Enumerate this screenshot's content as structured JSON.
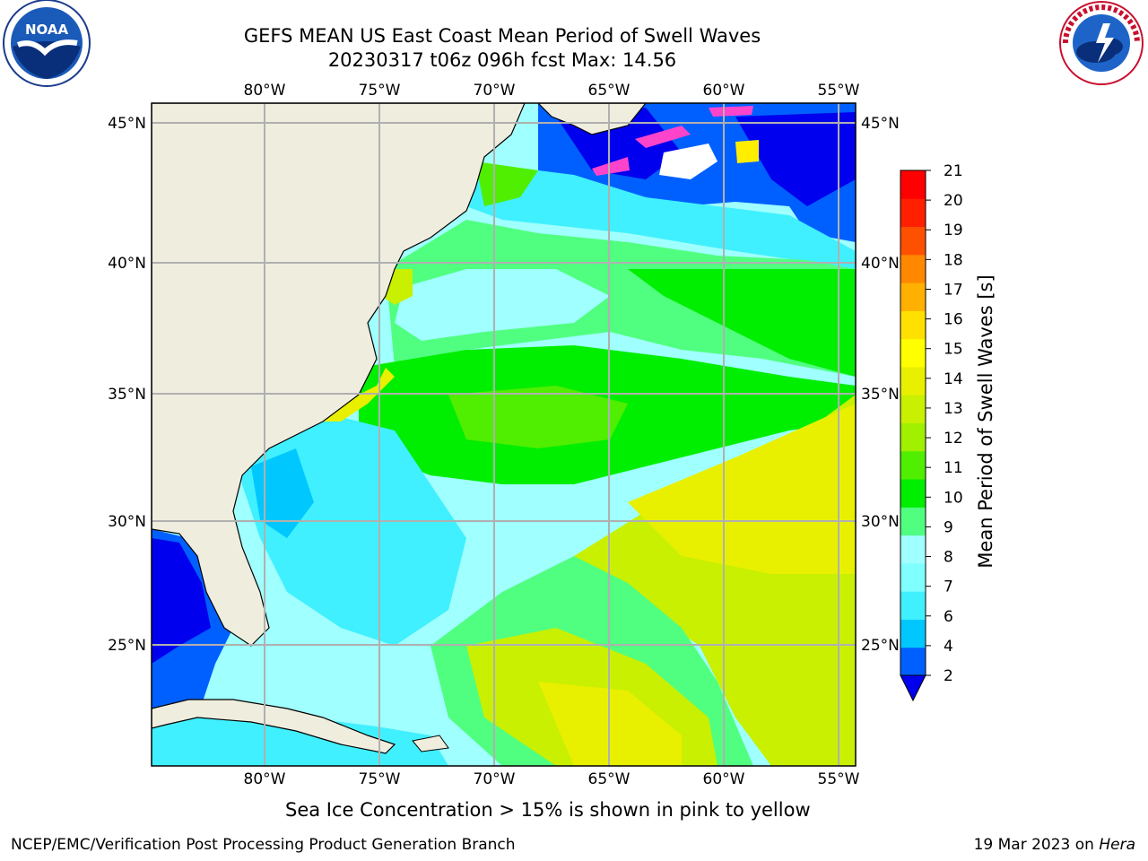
{
  "title": {
    "line1": "GEFS MEAN US East Coast Mean Period of Swell Waves",
    "line2": "20230317 t06z 096h fcst   Max: 14.56"
  },
  "logos": {
    "left": "NOAA",
    "left_icon": "noaa-logo-icon",
    "right_icon": "nws-logo-icon"
  },
  "map": {
    "lon_labels": [
      "80°W",
      "75°W",
      "70°W",
      "65°W",
      "60°W",
      "55°W"
    ],
    "lat_labels": [
      "45°N",
      "40°N",
      "35°N",
      "30°N",
      "25°N"
    ],
    "land_color": "#efedde",
    "grid_color": "#b0b0b0"
  },
  "colorbar": {
    "title": "Mean Period of Swell Waves [s]",
    "ticks": [
      "2",
      "4",
      "6",
      "7",
      "8",
      "9",
      "10",
      "11",
      "12",
      "13",
      "14",
      "15",
      "16",
      "17",
      "18",
      "19",
      "20",
      "21"
    ],
    "colors": [
      "#0060ff",
      "#00c8ff",
      "#40f0ff",
      "#80ffff",
      "#a0ffff",
      "#50ff80",
      "#00ee00",
      "#50ee00",
      "#a0f000",
      "#c8f000",
      "#e8f000",
      "#ffff00",
      "#ffe000",
      "#ffb000",
      "#ff8800",
      "#ff5000",
      "#ff2000",
      "#ff0000"
    ],
    "extend_color": "#0000ee"
  },
  "ice_note": "Sea Ice Concentration > 15% is shown in pink to yellow",
  "footer": {
    "left": "NCEP/EMC/Verification Post Processing Product Generation Branch",
    "right_prefix": "19 Mar 2023 on ",
    "right_host": "Hera"
  }
}
